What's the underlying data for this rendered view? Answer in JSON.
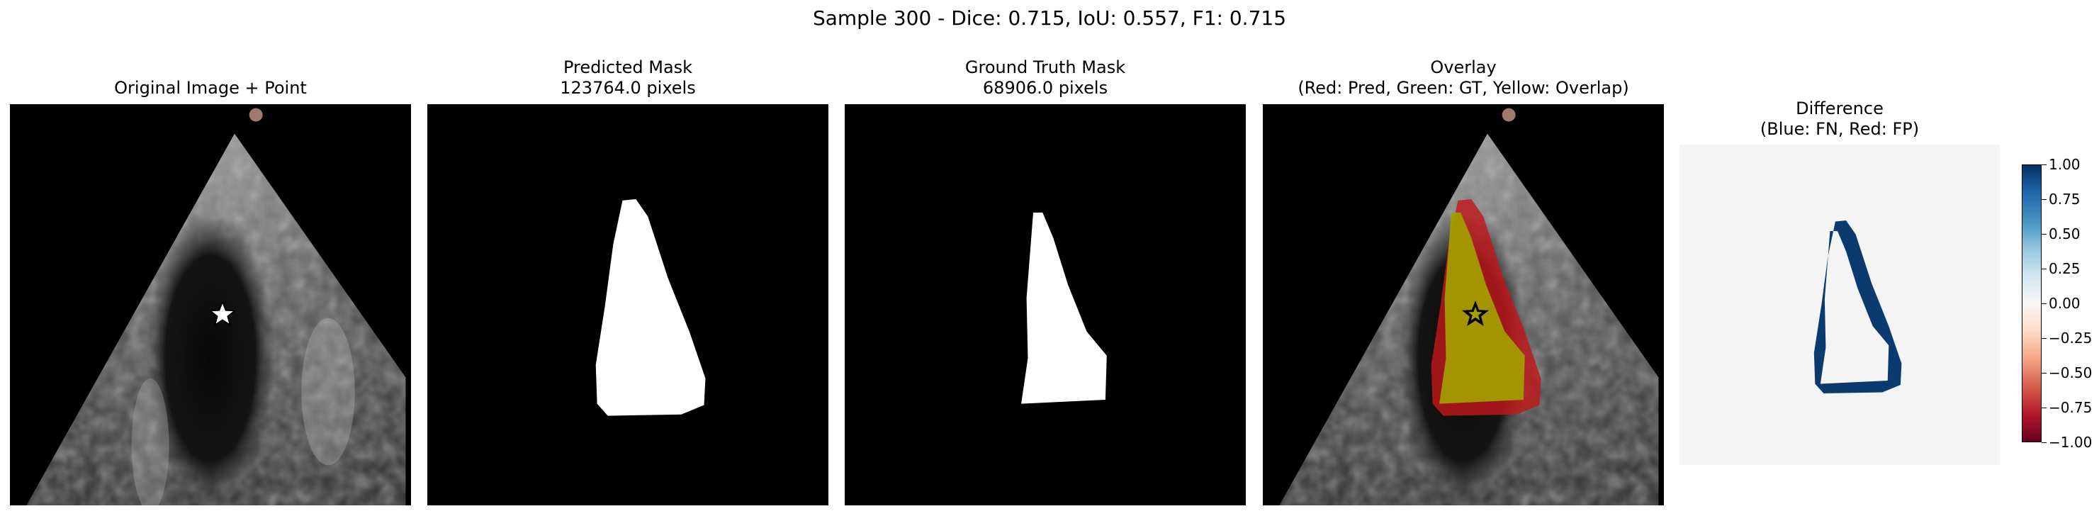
{
  "figure": {
    "suptitle": "Sample 300 - Dice: 0.715, IoU: 0.557, F1: 0.715"
  },
  "panels": [
    {
      "title_lines": [
        "Original Image + Point"
      ]
    },
    {
      "title_lines": [
        "Predicted Mask",
        "123764.0 pixels"
      ]
    },
    {
      "title_lines": [
        "Ground Truth Mask",
        "68906.0 pixels"
      ]
    },
    {
      "title_lines": [
        "Overlay",
        "(Red: Pred, Green: GT, Yellow: Overlap)"
      ]
    },
    {
      "title_lines": [
        "Difference",
        "(Blue: FN, Red: FP)"
      ]
    }
  ],
  "colorbar": {
    "range": [
      -1.0,
      1.0
    ],
    "ticks": [
      "1.00",
      "0.75",
      "0.50",
      "0.25",
      "0.00",
      "−0.25",
      "−0.50",
      "−0.75",
      "−1.00"
    ],
    "colormap": [
      "#67001f",
      "#b2182b",
      "#d6604d",
      "#f4a582",
      "#fddbc7",
      "#f7f7f7",
      "#d1e5f0",
      "#92c5de",
      "#4393c3",
      "#2166ac",
      "#053061"
    ]
  },
  "colors": {
    "pred_overlay": "#c0181c",
    "overlap_overlay": "#9f9a00",
    "fn_blue": "#0b3a6e",
    "diff_background": "#f4f4f4",
    "point_marker": "#ffffff"
  }
}
